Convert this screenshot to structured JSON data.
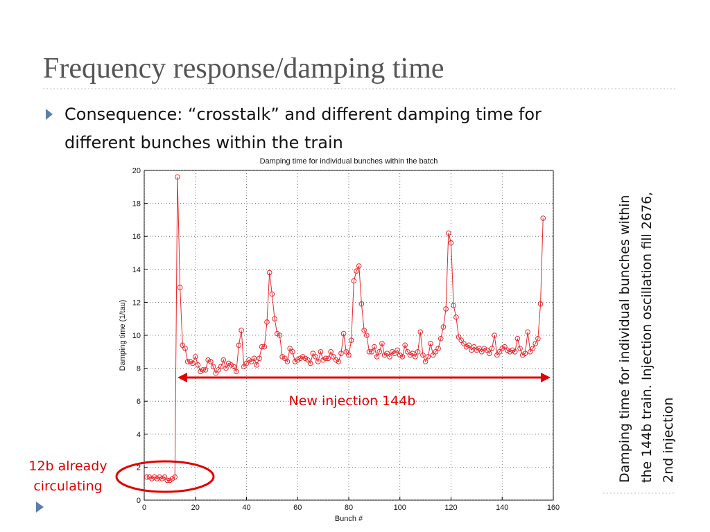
{
  "slide_title": "Frequency response/damping time",
  "bullet": [
    "Consequence: “crosstalk” and different damping time for",
    "different bunches within the train"
  ],
  "side_note": [
    "Damping time for individual bunches within",
    "the 144b train. Injection oscillation fill 2676,",
    "2nd injection"
  ],
  "chart_data": {
    "type": "line",
    "title": "Damping time for individual bunches within the batch",
    "xlabel": "Bunch #",
    "ylabel": "Damping time (1/tau)",
    "annotations": [
      "New injection 144b",
      "12b already",
      "circulating"
    ],
    "color": "#e8262a",
    "grid": true,
    "xlim": [
      0,
      160
    ],
    "ylim": [
      0,
      20
    ],
    "xticks": [
      0,
      20,
      40,
      60,
      80,
      100,
      120,
      140,
      160
    ],
    "yticks": [
      0,
      2,
      4,
      6,
      8,
      10,
      12,
      14,
      16,
      18,
      20
    ],
    "x": [
      1,
      2,
      3,
      4,
      5,
      6,
      7,
      8,
      9,
      10,
      11,
      12,
      13,
      14,
      15,
      16,
      17,
      18,
      19,
      20,
      21,
      22,
      23,
      24,
      25,
      26,
      27,
      28,
      29,
      30,
      31,
      32,
      33,
      34,
      35,
      36,
      37,
      38,
      39,
      40,
      41,
      42,
      43,
      44,
      45,
      46,
      47,
      48,
      49,
      50,
      51,
      52,
      53,
      54,
      55,
      56,
      57,
      58,
      59,
      60,
      61,
      62,
      63,
      64,
      65,
      66,
      67,
      68,
      69,
      70,
      71,
      72,
      73,
      74,
      75,
      76,
      77,
      78,
      79,
      80,
      81,
      82,
      83,
      84,
      85,
      86,
      87,
      88,
      89,
      90,
      91,
      92,
      93,
      94,
      95,
      96,
      97,
      98,
      99,
      100,
      101,
      102,
      103,
      104,
      105,
      106,
      107,
      108,
      109,
      110,
      111,
      112,
      113,
      114,
      115,
      116,
      117,
      118,
      119,
      120,
      121,
      122,
      123,
      124,
      125,
      126,
      127,
      128,
      129,
      130,
      131,
      132,
      133,
      134,
      135,
      136,
      137,
      138,
      139,
      140,
      141,
      142,
      143,
      144,
      145,
      146,
      147,
      148,
      149,
      150,
      151,
      152,
      153,
      154,
      155,
      156
    ],
    "values": [
      1.4,
      1.4,
      1.3,
      1.4,
      1.3,
      1.4,
      1.3,
      1.4,
      1.2,
      1.2,
      1.3,
      1.4,
      19.6,
      12.9,
      9.4,
      9.2,
      8.4,
      8.4,
      8.3,
      8.7,
      8.2,
      7.8,
      7.9,
      7.9,
      8.5,
      8.4,
      8.1,
      7.7,
      7.9,
      8.1,
      8.5,
      8.0,
      8.3,
      8.2,
      8.1,
      7.8,
      9.4,
      10.3,
      8.1,
      8.3,
      8.5,
      8.4,
      8.6,
      8.2,
      8.6,
      9.3,
      9.3,
      10.8,
      13.8,
      12.5,
      11.0,
      10.1,
      10.0,
      8.7,
      8.6,
      8.4,
      9.2,
      9.0,
      8.4,
      8.5,
      8.6,
      8.7,
      8.6,
      8.5,
      8.3,
      8.9,
      8.7,
      8.4,
      9.0,
      8.5,
      8.6,
      8.6,
      9.0,
      8.7,
      8.5,
      8.4,
      8.9,
      10.1,
      9.0,
      8.8,
      9.7,
      13.3,
      13.9,
      14.2,
      11.9,
      10.3,
      10.0,
      9.0,
      9.0,
      9.3,
      8.7,
      9.0,
      9.5,
      8.8,
      8.9,
      8.7,
      9.0,
      8.9,
      9.1,
      8.8,
      8.7,
      9.4,
      9.0,
      8.8,
      8.9,
      8.7,
      9.0,
      10.2,
      8.8,
      8.4,
      8.7,
      9.5,
      8.8,
      9.0,
      9.2,
      9.8,
      10.5,
      11.6,
      16.2,
      15.6,
      11.8,
      11.1,
      9.9,
      9.7,
      9.5,
      9.3,
      9.4,
      9.1,
      9.3,
      9.1,
      9.2,
      9.0,
      9.2,
      9.1,
      8.9,
      9.2,
      10.0,
      8.8,
      9.0,
      9.2,
      9.3,
      9.1,
      9.0,
      9.1,
      9.0,
      9.8,
      9.2,
      8.8,
      8.9,
      10.2,
      9.0,
      9.2,
      9.5,
      9.8,
      11.9,
      17.1
    ]
  }
}
